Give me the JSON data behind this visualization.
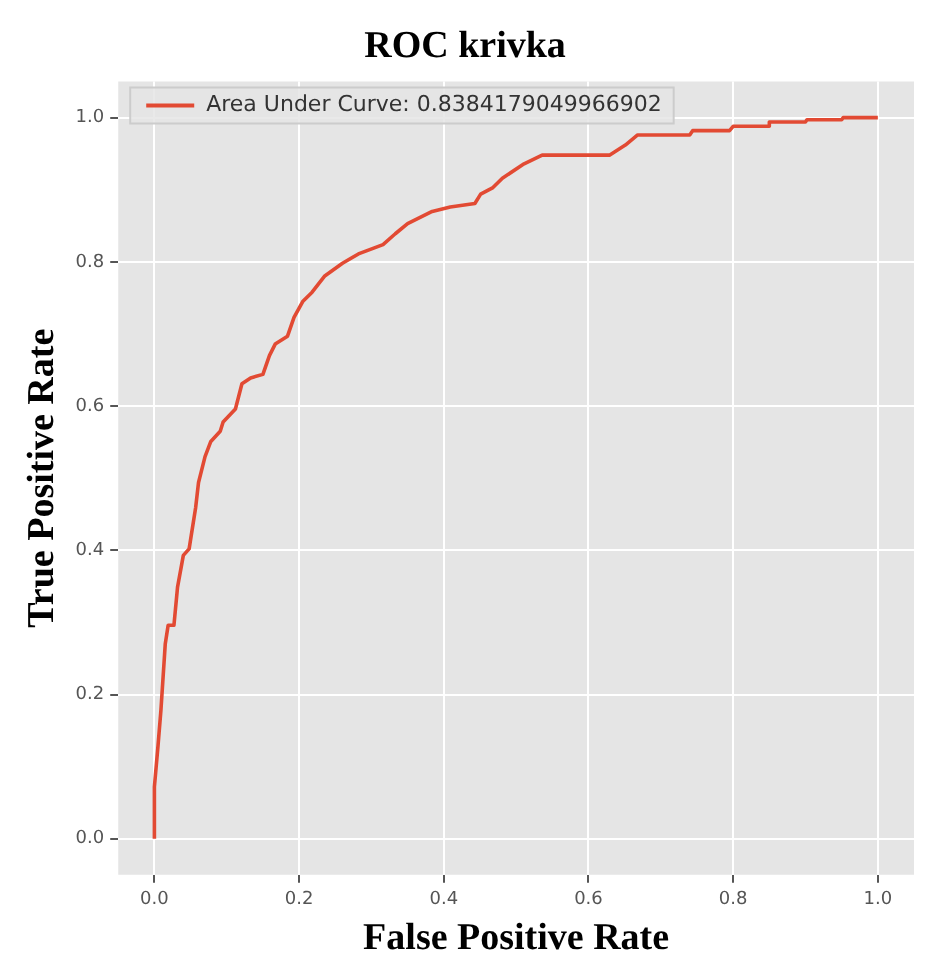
{
  "chart_data": {
    "type": "line",
    "title": "ROC krivka",
    "xlabel": "False Positive Rate",
    "ylabel": "True Positive Rate",
    "xlim": [
      -0.05,
      1.05
    ],
    "ylim": [
      -0.05,
      1.05
    ],
    "xticks": [
      {
        "value": 0,
        "label": "0.0"
      },
      0.2,
      0.4,
      0.6,
      0.8,
      {
        "value": 1,
        "label": "1.0"
      }
    ],
    "yticks": [
      {
        "value": 0,
        "label": "0.0"
      },
      0.2,
      0.4,
      0.6,
      0.8,
      {
        "value": 1,
        "label": "1.0"
      }
    ],
    "grid": true,
    "legend": "top left",
    "marker": "none",
    "line_style": "solid",
    "series": [
      {
        "name": "Area Under Curve: 0.8384179049966902",
        "color": "#e24a33",
        "x": [
          0,
          0,
          0.005,
          0.009,
          0.015,
          0.019,
          0.027,
          0.032,
          0.04,
          0.048,
          0.057,
          0.061,
          0.07,
          0.078,
          0.091,
          0.095,
          0.112,
          0.121,
          0.133,
          0.15,
          0.159,
          0.167,
          0.184,
          0.193,
          0.205,
          0.218,
          0.235,
          0.26,
          0.282,
          0.316,
          0.333,
          0.35,
          0.384,
          0.409,
          0.443,
          0.451,
          0.468,
          0.481,
          0.511,
          0.536,
          0.629,
          0.651,
          0.668,
          0.74,
          0.744,
          0.795,
          0.8,
          0.849,
          0.85,
          0.9,
          0.902,
          0.95,
          0.952,
          1.0
        ],
        "values": [
          0,
          0.072,
          0.129,
          0.178,
          0.27,
          0.296,
          0.296,
          0.349,
          0.393,
          0.402,
          0.459,
          0.494,
          0.53,
          0.551,
          0.565,
          0.578,
          0.596,
          0.631,
          0.639,
          0.644,
          0.67,
          0.686,
          0.697,
          0.723,
          0.745,
          0.758,
          0.78,
          0.798,
          0.811,
          0.824,
          0.839,
          0.853,
          0.87,
          0.876,
          0.881,
          0.894,
          0.903,
          0.916,
          0.936,
          0.948,
          0.948,
          0.962,
          0.976,
          0.976,
          0.982,
          0.982,
          0.988,
          0.988,
          0.994,
          0.994,
          0.997,
          0.997,
          1.0,
          1.0
        ]
      }
    ]
  }
}
